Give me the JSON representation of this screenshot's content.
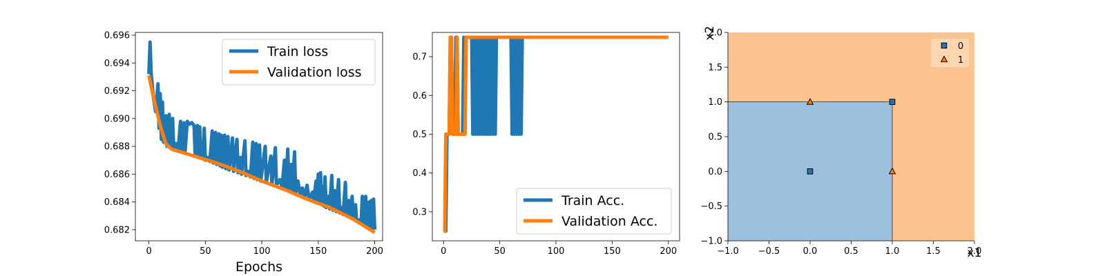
{
  "chart_data": [
    {
      "type": "line",
      "xlabel": "Epochs",
      "ylabel": "",
      "xlim": [
        -12,
        207
      ],
      "ylim": [
        0.6812,
        0.6962
      ],
      "x_ticks": [
        0,
        50,
        100,
        150,
        200
      ],
      "x_tick_labels": [
        "0",
        "50",
        "100",
        "150",
        "200"
      ],
      "y_ticks": [
        0.682,
        0.684,
        0.686,
        0.688,
        0.69,
        0.692,
        0.694,
        0.696
      ],
      "y_tick_labels": [
        "0.682",
        "0.684",
        "0.686",
        "0.688",
        "0.690",
        "0.692",
        "0.694",
        "0.696"
      ],
      "legend_position": "top-right",
      "series": [
        {
          "name": "Train loss",
          "color": "#1f77b4",
          "points": [
            [
              0,
              0.6932
            ],
            [
              1,
              0.6955
            ],
            [
              2,
              0.6932
            ],
            [
              4,
              0.6915
            ],
            [
              6,
              0.6905
            ],
            [
              8,
              0.6925
            ],
            [
              9,
              0.6893
            ],
            [
              10,
              0.6918
            ],
            [
              11,
              0.6885
            ],
            [
              12,
              0.6912
            ],
            [
              13,
              0.6883
            ],
            [
              15,
              0.6902
            ],
            [
              16,
              0.688
            ],
            [
              18,
              0.6903
            ],
            [
              19,
              0.6879
            ],
            [
              21,
              0.69
            ],
            [
              22,
              0.6878
            ],
            [
              24,
              0.6882
            ],
            [
              26,
              0.6878
            ],
            [
              28,
              0.6898
            ],
            [
              29,
              0.6877
            ],
            [
              31,
              0.6897
            ],
            [
              32,
              0.6876
            ],
            [
              34,
              0.6898
            ],
            [
              36,
              0.6896
            ],
            [
              38,
              0.6897
            ],
            [
              40,
              0.6895
            ],
            [
              41,
              0.6874
            ],
            [
              43,
              0.6895
            ],
            [
              44,
              0.6873
            ],
            [
              45,
              0.6894
            ],
            [
              46,
              0.6872
            ],
            [
              47,
              0.6878
            ],
            [
              48,
              0.6871
            ],
            [
              49,
              0.6893
            ],
            [
              50,
              0.687
            ],
            [
              52,
              0.6872
            ],
            [
              54,
              0.6869
            ],
            [
              56,
              0.6891
            ],
            [
              57,
              0.6868
            ],
            [
              59,
              0.689
            ],
            [
              60,
              0.6867
            ],
            [
              62,
              0.6889
            ],
            [
              63,
              0.6866
            ],
            [
              64,
              0.6888
            ],
            [
              65,
              0.6865
            ],
            [
              67,
              0.6888
            ],
            [
              68,
              0.6864
            ],
            [
              70,
              0.6887
            ],
            [
              71,
              0.6863
            ],
            [
              74,
              0.6886
            ],
            [
              75,
              0.6862
            ],
            [
              78,
              0.6885
            ],
            [
              79,
              0.6861
            ],
            [
              81,
              0.6872
            ],
            [
              82,
              0.686
            ],
            [
              85,
              0.6884
            ],
            [
              86,
              0.6859
            ],
            [
              88,
              0.6862
            ],
            [
              90,
              0.6858
            ],
            [
              92,
              0.6883
            ],
            [
              93,
              0.6857
            ],
            [
              95,
              0.6882
            ],
            [
              96,
              0.6856
            ],
            [
              98,
              0.6881
            ],
            [
              99,
              0.6855
            ],
            [
              103,
              0.688
            ],
            [
              104,
              0.6854
            ],
            [
              108,
              0.6873
            ],
            [
              109,
              0.6853
            ],
            [
              112,
              0.6879
            ],
            [
              113,
              0.6852
            ],
            [
              116,
              0.6856
            ],
            [
              118,
              0.6851
            ],
            [
              120,
              0.687
            ],
            [
              121,
              0.6849
            ],
            [
              123,
              0.6878
            ],
            [
              124,
              0.6848
            ],
            [
              126,
              0.6867
            ],
            [
              127,
              0.6847
            ],
            [
              129,
              0.6876
            ],
            [
              130,
              0.6846
            ],
            [
              132,
              0.6855
            ],
            [
              134,
              0.6845
            ],
            [
              136,
              0.685
            ],
            [
              138,
              0.6843
            ],
            [
              140,
              0.6852
            ],
            [
              142,
              0.6842
            ],
            [
              145,
              0.6847
            ],
            [
              146,
              0.6841
            ],
            [
              148,
              0.6855
            ],
            [
              149,
              0.684
            ],
            [
              150,
              0.686
            ],
            [
              151,
              0.6839
            ],
            [
              152,
              0.6861
            ],
            [
              153,
              0.6838
            ],
            [
              154,
              0.6851
            ],
            [
              155,
              0.6837
            ],
            [
              156,
              0.6858
            ],
            [
              157,
              0.6836
            ],
            [
              159,
              0.6844
            ],
            [
              160,
              0.6835
            ],
            [
              162,
              0.6859
            ],
            [
              163,
              0.6834
            ],
            [
              165,
              0.6848
            ],
            [
              166,
              0.6833
            ],
            [
              168,
              0.6856
            ],
            [
              169,
              0.6832
            ],
            [
              171,
              0.6836
            ],
            [
              172,
              0.6831
            ],
            [
              174,
              0.6854
            ],
            [
              175,
              0.683
            ],
            [
              177,
              0.6841
            ],
            [
              178,
              0.6829
            ],
            [
              180,
              0.6844
            ],
            [
              181,
              0.6828
            ],
            [
              183,
              0.6838
            ],
            [
              184,
              0.6826
            ],
            [
              186,
              0.6827
            ],
            [
              188,
              0.6825
            ],
            [
              189,
              0.6844
            ],
            [
              190,
              0.6824
            ],
            [
              192,
              0.6844
            ],
            [
              193,
              0.6823
            ],
            [
              195,
              0.684
            ],
            [
              196,
              0.6822
            ],
            [
              197,
              0.6841
            ],
            [
              198,
              0.6821
            ],
            [
              199,
              0.6842
            ],
            [
              200,
              0.682
            ]
          ]
        },
        {
          "name": "Validation loss",
          "color": "#ff7f0e",
          "points": [
            [
              0,
              0.6931
            ],
            [
              5,
              0.6912
            ],
            [
              10,
              0.6895
            ],
            [
              15,
              0.6882
            ],
            [
              20,
              0.6878
            ],
            [
              40,
              0.6873
            ],
            [
              60,
              0.6868
            ],
            [
              80,
              0.6862
            ],
            [
              100,
              0.6855
            ],
            [
              120,
              0.6849
            ],
            [
              140,
              0.6842
            ],
            [
              160,
              0.6836
            ],
            [
              180,
              0.6828
            ],
            [
              200,
              0.6818
            ]
          ]
        }
      ]
    },
    {
      "type": "line",
      "xlabel": "",
      "ylabel": "",
      "xlim": [
        -10,
        210
      ],
      "ylim": [
        0.225,
        0.7625
      ],
      "x_ticks": [
        0,
        50,
        100,
        150,
        200
      ],
      "x_tick_labels": [
        "0",
        "50",
        "100",
        "150",
        "200"
      ],
      "y_ticks": [
        0.3,
        0.4,
        0.5,
        0.6,
        0.7
      ],
      "y_tick_labels": [
        "0.3",
        "0.4",
        "0.5",
        "0.6",
        "0.7"
      ],
      "legend_position": "lower-right",
      "series": [
        {
          "name": "Train Acc.",
          "color": "#1f77b4",
          "points": [
            [
              0,
              0.25
            ],
            [
              2,
              0.25
            ],
            [
              3,
              0.5
            ],
            [
              5,
              0.5
            ],
            [
              6,
              0.75
            ],
            [
              7,
              0.75
            ],
            [
              8,
              0.5
            ],
            [
              10,
              0.5
            ],
            [
              11,
              0.75
            ],
            [
              12,
              0.75
            ],
            [
              13,
              0.5
            ],
            [
              15,
              0.5
            ],
            [
              17,
              0.5
            ],
            [
              18,
              0.75
            ],
            [
              19,
              0.5
            ],
            [
              20,
              0.75
            ],
            [
              25,
              0.75
            ],
            [
              26,
              0.5
            ],
            [
              27,
              0.75
            ],
            [
              28,
              0.5
            ],
            [
              29,
              0.75
            ],
            [
              30,
              0.5
            ],
            [
              31,
              0.75
            ],
            [
              32,
              0.5
            ],
            [
              33,
              0.75
            ],
            [
              34,
              0.5
            ],
            [
              35,
              0.75
            ],
            [
              36,
              0.5
            ],
            [
              37,
              0.75
            ],
            [
              38,
              0.5
            ],
            [
              39,
              0.75
            ],
            [
              40,
              0.5
            ],
            [
              41,
              0.75
            ],
            [
              42,
              0.5
            ],
            [
              43,
              0.75
            ],
            [
              44,
              0.5
            ],
            [
              45,
              0.75
            ],
            [
              46,
              0.5
            ],
            [
              47,
              0.75
            ],
            [
              60,
              0.75
            ],
            [
              61,
              0.5
            ],
            [
              62,
              0.75
            ],
            [
              63,
              0.5
            ],
            [
              64,
              0.75
            ],
            [
              65,
              0.5
            ],
            [
              66,
              0.75
            ],
            [
              67,
              0.5
            ],
            [
              68,
              0.75
            ],
            [
              69,
              0.5
            ],
            [
              70,
              0.75
            ],
            [
              200,
              0.75
            ]
          ]
        },
        {
          "name": "Validation Acc.",
          "color": "#ff7f0e",
          "points": [
            [
              0,
              0.25
            ],
            [
              1,
              0.25
            ],
            [
              2,
              0.5
            ],
            [
              5,
              0.5
            ],
            [
              6,
              0.75
            ],
            [
              7,
              0.75
            ],
            [
              8,
              0.5
            ],
            [
              11,
              0.5
            ],
            [
              12,
              0.75
            ],
            [
              13,
              0.5
            ],
            [
              19,
              0.5
            ],
            [
              20,
              0.75
            ],
            [
              200,
              0.75
            ]
          ]
        }
      ]
    },
    {
      "type": "scatter",
      "xlabel": "x1",
      "ylabel": "x2",
      "xlim": [
        -1.0,
        2.0
      ],
      "ylim": [
        -1.0,
        2.0
      ],
      "x_ticks": [
        -1.0,
        -0.5,
        0.0,
        0.5,
        1.0,
        1.5,
        2.0
      ],
      "x_tick_labels": [
        "−1.0",
        "−0.5",
        "0.0",
        "0.5",
        "1.0",
        "1.5",
        "2.0"
      ],
      "y_ticks": [
        -1.0,
        -0.5,
        0.0,
        0.5,
        1.0,
        1.5,
        2.0
      ],
      "y_tick_labels": [
        "−1.0",
        "−0.5",
        "0.0",
        "0.5",
        "1.0",
        "1.5",
        "2.0"
      ],
      "legend_position": "top-right",
      "decision_regions": [
        {
          "class": "0",
          "color": "#9cc0dd",
          "x_range": [
            -1.0,
            1.0
          ],
          "y_range": [
            -1.0,
            1.0
          ]
        },
        {
          "class": "1",
          "color": "#fec48f",
          "rest": true
        }
      ],
      "series": [
        {
          "name": "0",
          "marker": "square",
          "color": "#1f77b4",
          "points": [
            [
              0,
              0
            ],
            [
              1,
              1
            ]
          ]
        },
        {
          "name": "1",
          "marker": "triangle",
          "color": "#ff7f0e",
          "points": [
            [
              0,
              1
            ],
            [
              1,
              0
            ]
          ]
        }
      ]
    }
  ]
}
